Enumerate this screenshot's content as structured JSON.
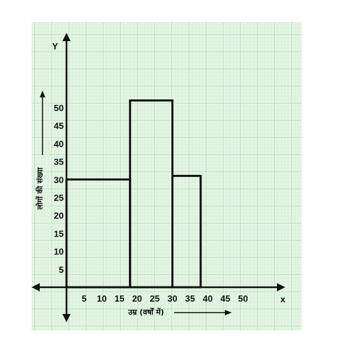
{
  "chart_data": {
    "type": "histogram",
    "title": "",
    "xlabel": "उम्र (वर्षों में)",
    "ylabel": "लोगों की संख्या",
    "x_axis_letter": "x",
    "y_axis_letter": "Y",
    "xlim": [
      0,
      50
    ],
    "ylim": [
      0,
      50
    ],
    "x_ticks": [
      5,
      10,
      15,
      20,
      25,
      30,
      35,
      40,
      45,
      50
    ],
    "y_ticks": [
      5,
      10,
      15,
      20,
      25,
      30,
      35,
      40,
      45,
      50
    ],
    "bins": [
      {
        "x_start": 0,
        "x_end": 18,
        "value": 30
      },
      {
        "x_start": 18,
        "x_end": 30,
        "value": 52
      },
      {
        "x_start": 30,
        "x_end": 38,
        "value": 31
      }
    ],
    "grid": true,
    "colors": {
      "background": "#e4f4e4",
      "grid_minor": "#c6e6c6",
      "grid_major": "#9fd29f",
      "bar_stroke": "#111111",
      "axis": "#111111"
    }
  }
}
